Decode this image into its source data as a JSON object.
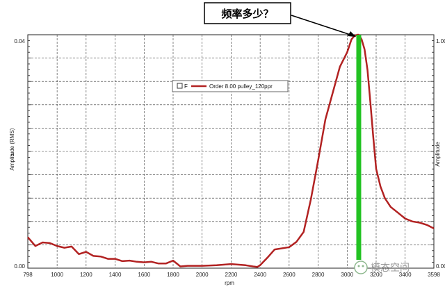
{
  "callout": {
    "text": "频率多少？"
  },
  "watermark": {
    "text": "模态空间"
  },
  "colors": {
    "curve": "#b22222",
    "marker": "#22c222",
    "grid": "#333333"
  },
  "chart_data": {
    "type": "line",
    "xlabel": "rpm",
    "ylabel_left": "Amplitude (RMS)",
    "ylabel_left_prefix": "o",
    "ylabel_right": "Amplitude",
    "xlim": [
      798,
      3598
    ],
    "ylim_left": [
      0.0,
      0.04
    ],
    "ylim_right": [
      0.0,
      1.0
    ],
    "x_tick_labels": [
      "798",
      "1000",
      "1200",
      "1400",
      "1600",
      "1800",
      "2000",
      "2200",
      "2400",
      "2600",
      "2800",
      "3000",
      "3200",
      "3400",
      "3598"
    ],
    "x_ticks": [
      798,
      1000,
      1200,
      1400,
      1600,
      1800,
      2000,
      2200,
      2400,
      2600,
      2800,
      3000,
      3200,
      3400,
      3598
    ],
    "y_left_tick_labels": [
      "0.04",
      "0.00"
    ],
    "y_left_ticks": [
      0.04,
      0.0
    ],
    "y_right_tick_labels": [
      "1.00",
      "0.00"
    ],
    "y_right_ticks": [
      1.0,
      0.0
    ],
    "grid": true,
    "legend": {
      "placement": "center",
      "box_label": "F",
      "entry": "Order 8.00 pulley_120ppr"
    },
    "marker_x": 3080,
    "series": [
      {
        "name": "Order 8.00 pulley_120ppr",
        "x": [
          798,
          850,
          900,
          950,
          1000,
          1050,
          1100,
          1150,
          1200,
          1250,
          1300,
          1350,
          1400,
          1450,
          1500,
          1550,
          1600,
          1650,
          1700,
          1750,
          1800,
          1830,
          1850,
          1900,
          1950,
          2000,
          2100,
          2200,
          2300,
          2350,
          2380,
          2400,
          2450,
          2500,
          2600,
          2650,
          2700,
          2750,
          2800,
          2850,
          2900,
          2950,
          3000,
          3030,
          3050,
          3070,
          3080,
          3100,
          3120,
          3140,
          3160,
          3180,
          3200,
          3230,
          3260,
          3300,
          3350,
          3400,
          3450,
          3500,
          3550,
          3598
        ],
        "y": [
          0.0053,
          0.0038,
          0.0044,
          0.0043,
          0.0038,
          0.0035,
          0.0037,
          0.0024,
          0.0028,
          0.0021,
          0.002,
          0.0016,
          0.0016,
          0.0012,
          0.0013,
          0.0011,
          0.001,
          0.0011,
          0.0008,
          0.0008,
          0.0013,
          0.0007,
          0.0003,
          0.0004,
          0.0004,
          0.0004,
          0.0005,
          0.0007,
          0.0005,
          0.0003,
          0.0002,
          0.0005,
          0.0018,
          0.0032,
          0.0036,
          0.0045,
          0.0062,
          0.0118,
          0.0185,
          0.0255,
          0.03,
          0.0345,
          0.037,
          0.0392,
          0.0398,
          0.04,
          0.04,
          0.0392,
          0.0375,
          0.034,
          0.0285,
          0.0225,
          0.017,
          0.014,
          0.012,
          0.0105,
          0.0095,
          0.0085,
          0.008,
          0.0078,
          0.0074,
          0.0068
        ]
      }
    ]
  }
}
